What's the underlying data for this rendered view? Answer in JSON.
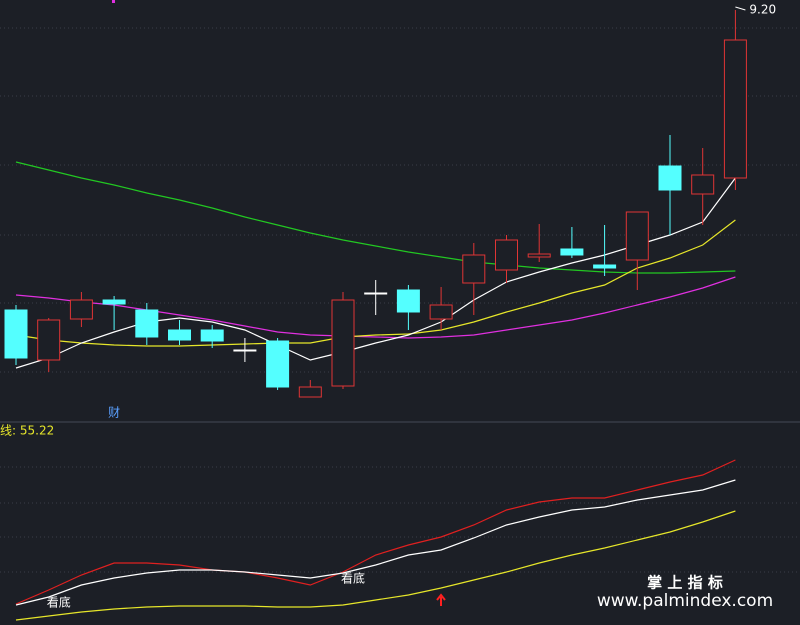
{
  "chart_data": [
    {
      "type": "candlestick",
      "ylim": [
        5.1,
        9.3
      ],
      "open": [
        6.2,
        5.7,
        6.11,
        6.3,
        6.2,
        6.0,
        6.0,
        5.8,
        5.89,
        5.33,
        5.44,
        6.37,
        6.4,
        6.11,
        6.47,
        6.6,
        6.73,
        6.81,
        6.65,
        6.7,
        7.64,
        7.36,
        7.52
      ],
      "high": [
        6.25,
        6.12,
        6.38,
        6.34,
        6.27,
        6.1,
        6.05,
        5.92,
        5.92,
        5.5,
        6.38,
        6.5,
        6.45,
        6.43,
        6.87,
        6.95,
        7.06,
        7.03,
        7.05,
        7.18,
        7.95,
        7.82,
        9.2
      ],
      "low": [
        5.65,
        5.58,
        6.03,
        6.0,
        5.85,
        5.85,
        5.82,
        5.68,
        5.4,
        5.33,
        5.41,
        6.15,
        6.0,
        6.0,
        6.15,
        6.47,
        6.68,
        6.72,
        6.54,
        6.4,
        6.95,
        7.05,
        7.4
      ],
      "close": [
        5.72,
        6.1,
        6.3,
        6.26,
        5.93,
        5.9,
        5.89,
        5.8,
        5.43,
        5.43,
        6.3,
        6.37,
        6.18,
        6.25,
        6.75,
        6.9,
        6.76,
        6.75,
        6.62,
        7.18,
        7.4,
        7.55,
        8.9
      ],
      "high_label": "9.20",
      "up_color": "#e03535",
      "down_color": "#54ffff",
      "flat_color": "#ffffff",
      "series": [
        {
          "color": "#22c722",
          "values": [
            7.68,
            7.6,
            7.52,
            7.45,
            7.37,
            7.3,
            7.22,
            7.13,
            7.05,
            6.97,
            6.9,
            6.84,
            6.78,
            6.73,
            6.68,
            6.65,
            6.62,
            6.6,
            6.58,
            6.57,
            6.57,
            6.58,
            6.59
          ]
        },
        {
          "color": "#e030e0",
          "values": [
            6.35,
            6.32,
            6.28,
            6.25,
            6.2,
            6.15,
            6.1,
            6.04,
            5.98,
            5.95,
            5.94,
            5.93,
            5.92,
            5.93,
            5.95,
            6.0,
            6.05,
            6.1,
            6.17,
            6.25,
            6.33,
            6.42,
            6.53
          ]
        },
        {
          "color": "#e6e62a",
          "values": [
            5.95,
            5.9,
            5.87,
            5.85,
            5.84,
            5.84,
            5.85,
            5.86,
            5.87,
            5.87,
            5.93,
            5.95,
            5.96,
            6.0,
            6.08,
            6.18,
            6.27,
            6.37,
            6.45,
            6.62,
            6.72,
            6.85,
            7.1
          ]
        },
        {
          "color": "#ffffff",
          "values": [
            5.62,
            5.72,
            5.87,
            5.98,
            6.08,
            6.12,
            6.08,
            6.0,
            5.85,
            5.7,
            5.78,
            5.87,
            5.95,
            6.08,
            6.3,
            6.48,
            6.58,
            6.67,
            6.75,
            6.85,
            6.95,
            7.08,
            7.52
          ]
        }
      ],
      "annotations": [
        {
          "text": "财",
          "x": 3
        }
      ]
    },
    {
      "type": "line",
      "title": "线: 55.22",
      "ylim": [
        0,
        100
      ],
      "series": [
        {
          "color": "#e02020",
          "values": [
            10.5,
            17.5,
            25,
            31,
            31,
            30,
            27.5,
            26.5,
            23.5,
            20,
            26.5,
            35,
            40,
            44,
            50,
            57.5,
            61.5,
            63.5,
            63.5,
            67.5,
            71.5,
            75,
            82.5
          ]
        },
        {
          "color": "#ffffff",
          "values": [
            10,
            14,
            20,
            23.5,
            26,
            27.5,
            27.5,
            26.5,
            25,
            23.5,
            26,
            30,
            35,
            37.5,
            43.5,
            50,
            54,
            57.5,
            59,
            62.5,
            65,
            67.5,
            72.5
          ]
        },
        {
          "color": "#e6e62a",
          "values": [
            2.5,
            4.5,
            6.5,
            8,
            9,
            9.5,
            9.5,
            9.5,
            9,
            9,
            10,
            12.5,
            15,
            18.5,
            22.5,
            26.5,
            31,
            35,
            38.5,
            42.5,
            46.5,
            51.5,
            57
          ]
        }
      ],
      "annotations": [
        {
          "text": "看底",
          "x": 1
        },
        {
          "text": "看底",
          "x": 10
        }
      ]
    }
  ],
  "watermark": {
    "title": "掌 上 指 标",
    "url": "www.palmindex.com"
  }
}
